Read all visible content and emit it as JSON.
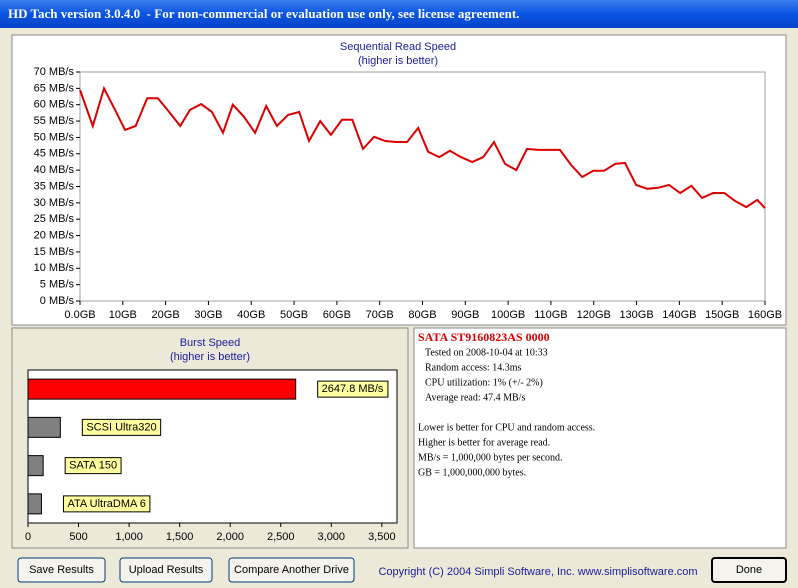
{
  "window": {
    "title": "HD Tach version 3.0.4.0  - For non-commercial or evaluation use only, see license agreement."
  },
  "chart_data": [
    {
      "type": "line",
      "title": "Sequential Read Speed",
      "subtitle": "(higher is better)",
      "x": [
        0,
        3,
        5.6,
        8.2,
        10.5,
        13,
        15.7,
        18.2,
        20.8,
        23.4,
        25.7,
        28.3,
        30.8,
        33.4,
        35.7,
        38.3,
        40.9,
        43.5,
        46,
        48.6,
        51.2,
        53.5,
        56.1,
        58.6,
        61.2,
        63.6,
        66.1,
        68.7,
        71.3,
        73.8,
        76.4,
        79,
        81.3,
        83.9,
        86.4,
        89,
        91.6,
        94.2,
        96.7,
        99.3,
        101.9,
        104.4,
        107,
        109.6,
        112.1,
        114.7,
        117.3,
        119.9,
        122.4,
        125,
        127.3,
        129.9,
        132.5,
        135,
        137.6,
        140.2,
        142.8,
        145.3,
        147.9,
        150.5,
        153,
        155.6,
        158.2,
        160
      ],
      "values": [
        64.5,
        53.5,
        65,
        58.4,
        52.3,
        53.5,
        62,
        62,
        57.8,
        53.5,
        58.4,
        60.2,
        57.8,
        51.4,
        60,
        56.3,
        51.4,
        59.6,
        53.5,
        56.9,
        57.8,
        48.9,
        55,
        50.8,
        55.4,
        55.4,
        46.5,
        50.2,
        48.9,
        48.6,
        48.6,
        52.9,
        45.6,
        44,
        45.9,
        44,
        42.5,
        44,
        48.6,
        41.9,
        40,
        46.5,
        46.2,
        46.2,
        46.2,
        41.6,
        37.9,
        39.8,
        39.8,
        41.9,
        42.2,
        35.5,
        34.3,
        34.6,
        35.5,
        33,
        35.2,
        31.5,
        33,
        33,
        30.6,
        28.7,
        30.9,
        28.4
      ],
      "color": "#dd0000",
      "xlim": [
        0,
        160
      ],
      "xticks": [
        {
          "value": 0,
          "label": "0.0GB"
        },
        {
          "value": 10,
          "label": "10GB"
        },
        {
          "value": 20,
          "label": "20GB"
        },
        {
          "value": 30,
          "label": "30GB"
        },
        {
          "value": 40,
          "label": "40GB"
        },
        {
          "value": 50,
          "label": "50GB"
        },
        {
          "value": 60,
          "label": "60GB"
        },
        {
          "value": 70,
          "label": "70GB"
        },
        {
          "value": 80,
          "label": "80GB"
        },
        {
          "value": 90,
          "label": "90GB"
        },
        {
          "value": 100,
          "label": "100GB"
        },
        {
          "value": 110,
          "label": "110GB"
        },
        {
          "value": 120,
          "label": "120GB"
        },
        {
          "value": 130,
          "label": "130GB"
        },
        {
          "value": 140,
          "label": "140GB"
        },
        {
          "value": 150,
          "label": "150GB"
        },
        {
          "value": 160,
          "label": "160GB"
        }
      ],
      "ylim": [
        0,
        70
      ],
      "yticks": [
        {
          "value": 0,
          "label": "0 MB/s"
        },
        {
          "value": 5,
          "label": "5 MB/s"
        },
        {
          "value": 10,
          "label": "10 MB/s"
        },
        {
          "value": 15,
          "label": "15 MB/s"
        },
        {
          "value": 20,
          "label": "20 MB/s"
        },
        {
          "value": 25,
          "label": "25 MB/s"
        },
        {
          "value": 30,
          "label": "30 MB/s"
        },
        {
          "value": 35,
          "label": "35 MB/s"
        },
        {
          "value": 40,
          "label": "40 MB/s"
        },
        {
          "value": 45,
          "label": "45 MB/s"
        },
        {
          "value": 50,
          "label": "50 MB/s"
        },
        {
          "value": 55,
          "label": "55 MB/s"
        },
        {
          "value": 60,
          "label": "60 MB/s"
        },
        {
          "value": 65,
          "label": "65 MB/s"
        },
        {
          "value": 70,
          "label": "70 MB/s"
        }
      ]
    },
    {
      "type": "bar",
      "orientation": "horizontal",
      "title": "Burst Speed",
      "subtitle": "(higher is better)",
      "categories": [
        null,
        "SCSI Ultra320",
        "SATA 150",
        "ATA UltraDMA 6"
      ],
      "values": [
        2647.8,
        320,
        150,
        133
      ],
      "value_labels": [
        "2647.8 MB/s",
        null,
        null,
        null
      ],
      "colors": [
        "#ff0000",
        "#808080",
        "#808080",
        "#808080"
      ],
      "xlim": [
        0,
        3650
      ],
      "xticks": [
        0,
        {
          "value": 500,
          "label": "500"
        },
        {
          "value": 1000,
          "label": "1,000"
        },
        {
          "value": 1500,
          "label": "1,500"
        },
        {
          "value": 2000,
          "label": "2,000"
        },
        {
          "value": 2500,
          "label": "2,500"
        },
        {
          "value": 3000,
          "label": "3,000"
        },
        {
          "value": 3500,
          "label": "3,500"
        }
      ]
    }
  ],
  "drive_info": {
    "name": "SATA ST9160823AS 0000",
    "lines": [
      "Tested on 2008-10-04 at 10:33",
      "Random access: 14.3ms",
      "CPU utilization: 1% (+/- 2%)",
      "Average read: 47.4 MB/s"
    ],
    "notes": [
      "Lower is better for CPU and random access.",
      "Higher is better for average read.",
      "MB/s = 1,000,000 bytes per second.",
      "GB = 1,000,000,000 bytes."
    ]
  },
  "buttons": [
    "Save Results",
    "Upload Results",
    "Compare Another Drive",
    "Done"
  ],
  "copyright": "Copyright (C) 2004 Simpli Software, Inc. www.simplisoftware.com"
}
